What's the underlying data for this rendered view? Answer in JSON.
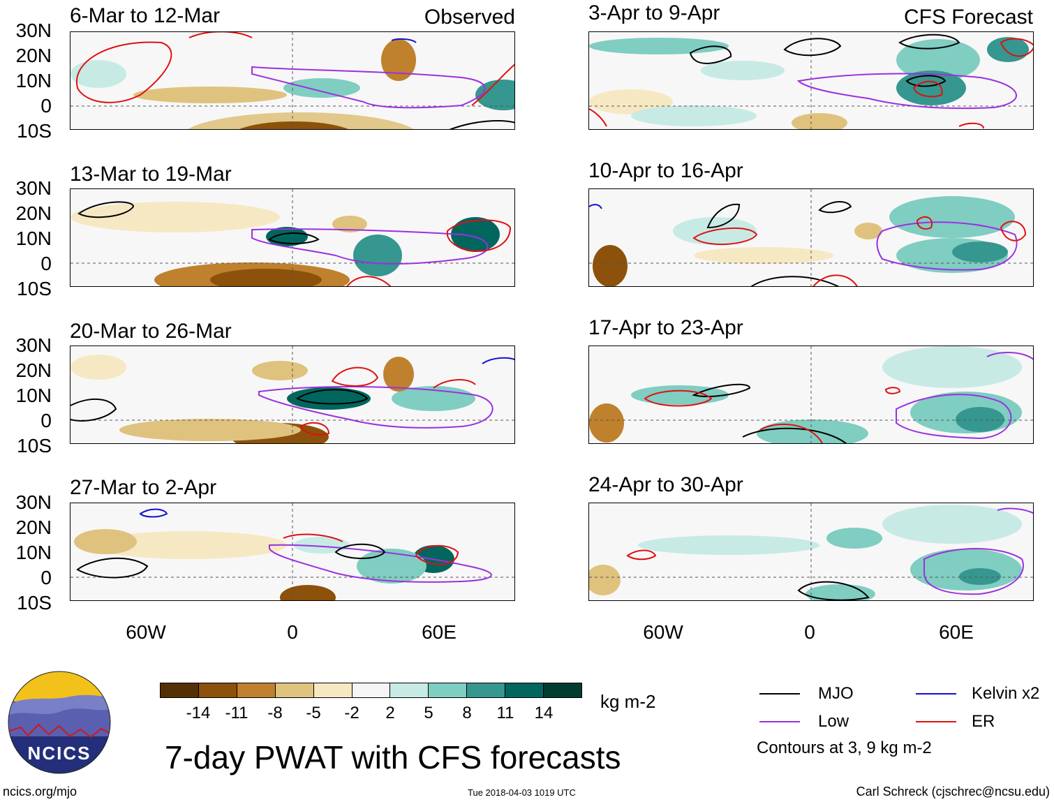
{
  "observed_tag": "Observed",
  "forecast_tag": "CFS Forecast",
  "left_panels": [
    {
      "title": "6-Mar to 12-Mar"
    },
    {
      "title": "13-Mar to 19-Mar"
    },
    {
      "title": "20-Mar to 26-Mar"
    },
    {
      "title": "27-Mar to 2-Apr"
    }
  ],
  "right_panels": [
    {
      "title": "3-Apr to 9-Apr"
    },
    {
      "title": "10-Apr to 16-Apr"
    },
    {
      "title": "17-Apr to 23-Apr"
    },
    {
      "title": "24-Apr to 30-Apr"
    }
  ],
  "lat_labels": [
    "30N",
    "20N",
    "10N",
    "0",
    "10S"
  ],
  "lon_labels": [
    "60W",
    "0",
    "60E"
  ],
  "colorbar": {
    "ticks": [
      "-14",
      "-11",
      "-8",
      "-5",
      "-2",
      "2",
      "5",
      "8",
      "11",
      "14"
    ],
    "units": "kg m-2",
    "colors": [
      "#543005",
      "#8c510a",
      "#bf812d",
      "#dfc27d",
      "#f6e8c3",
      "#f5f5f5",
      "#c7eae5",
      "#80cdc1",
      "#35978f",
      "#01665e",
      "#003c30"
    ]
  },
  "legend": {
    "mjo": "MJO",
    "kelvin": "Kelvin x2",
    "low": "Low",
    "er": "ER",
    "contours_note": "Contours at 3, 9 kg m-2",
    "colors": {
      "mjo": "#000000",
      "kelvin": "#1010d0",
      "low": "#9b30e0",
      "er": "#e01010"
    }
  },
  "main_title": "7-day PWAT with CFS forecasts",
  "logo_text": "NCICS",
  "footer": {
    "url": "ncics.org/mjo",
    "timestamp": "Tue 2018-04-03 1019 UTC",
    "credit": "Carl Schreck (cjschrec@ncsu.edu)"
  }
}
